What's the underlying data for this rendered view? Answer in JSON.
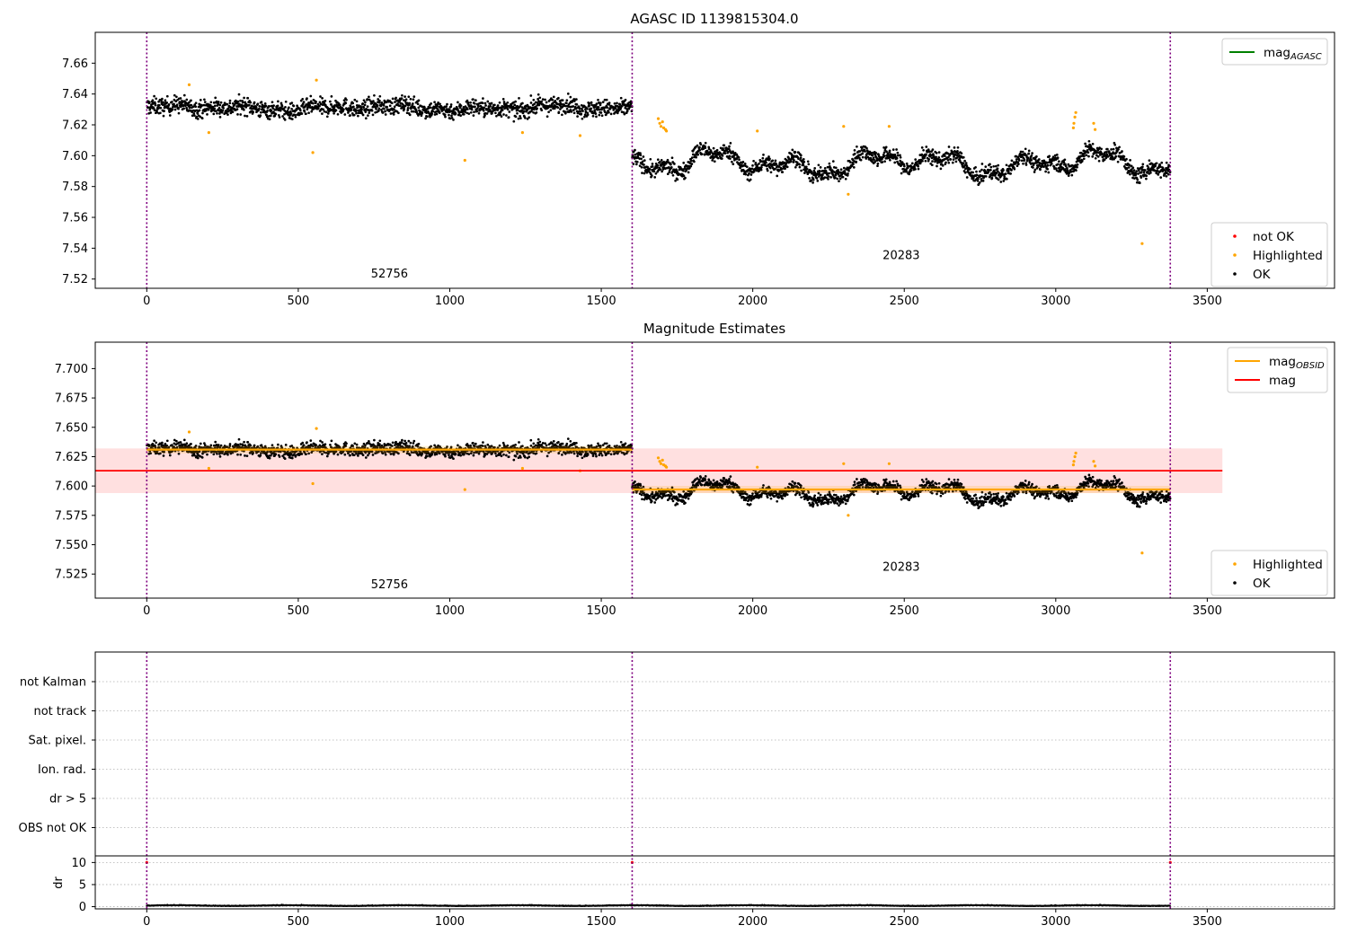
{
  "chart_data": [
    {
      "type": "scatter",
      "title": "AGASC ID 1139815304.0",
      "xlim": [
        -170,
        3920
      ],
      "ylim": [
        7.514,
        7.68
      ],
      "xticks": [
        0,
        500,
        1000,
        1500,
        2000,
        2500,
        3000,
        3500
      ],
      "yticks": [
        7.52,
        7.54,
        7.56,
        7.58,
        7.6,
        7.62,
        7.64,
        7.66
      ],
      "ytick_labels": [
        "7.52",
        "7.54",
        "7.56",
        "7.58",
        "7.60",
        "7.62",
        "7.64",
        "7.66"
      ],
      "vlines": [
        0,
        1602,
        3378
      ],
      "segment_labels": [
        {
          "text": "52756",
          "x": 801,
          "y": 7.521
        },
        {
          "text": "20283",
          "x": 2490,
          "y": 7.533
        }
      ],
      "segments": [
        {
          "x_start": 0,
          "x_end": 1602,
          "mean": 7.631,
          "noise": 0.0055,
          "wave": 0.002
        },
        {
          "x_start": 1602,
          "x_end": 3378,
          "mean": 7.595,
          "noise": 0.005,
          "wave": 0.008
        }
      ],
      "highlighted_points": [
        [
          140,
          7.646
        ],
        [
          205,
          7.615
        ],
        [
          548,
          7.602
        ],
        [
          560,
          7.649
        ],
        [
          1050,
          7.597
        ],
        [
          1240,
          7.615
        ],
        [
          1430,
          7.613
        ],
        [
          1688,
          7.624
        ],
        [
          1693,
          7.621
        ],
        [
          1697,
          7.619
        ],
        [
          1702,
          7.622
        ],
        [
          1706,
          7.618
        ],
        [
          1712,
          7.617
        ],
        [
          1715,
          7.616
        ],
        [
          2015,
          7.616
        ],
        [
          2300,
          7.619
        ],
        [
          2315,
          7.575
        ],
        [
          2450,
          7.619
        ],
        [
          3060,
          7.621
        ],
        [
          3063,
          7.625
        ],
        [
          3066,
          7.628
        ],
        [
          3058,
          7.618
        ],
        [
          3125,
          7.621
        ],
        [
          3130,
          7.617
        ],
        [
          3285,
          7.543
        ]
      ],
      "legends": [
        {
          "position": "upper-right",
          "entries": [
            {
              "label": "mag",
              "subscript": "AGASC",
              "marker": "line",
              "color": "#008000"
            }
          ]
        },
        {
          "position": "lower-right",
          "entries": [
            {
              "label": "not OK",
              "marker": "dot",
              "color": "#ff0000"
            },
            {
              "label": "Highlighted",
              "marker": "dot",
              "color": "#ffa500"
            },
            {
              "label": "OK",
              "marker": "dot",
              "color": "#000000"
            }
          ]
        }
      ]
    },
    {
      "type": "scatter",
      "title": "Magnitude Estimates",
      "xlim": [
        -170,
        3920
      ],
      "ylim": [
        7.5045,
        7.7225
      ],
      "xticks": [
        0,
        500,
        1000,
        1500,
        2000,
        2500,
        3000,
        3500
      ],
      "yticks": [
        7.525,
        7.55,
        7.575,
        7.6,
        7.625,
        7.65,
        7.675,
        7.7
      ],
      "ytick_labels": [
        "7.525",
        "7.550",
        "7.575",
        "7.600",
        "7.625",
        "7.650",
        "7.675",
        "7.700"
      ],
      "vlines": [
        0,
        1602,
        3378
      ],
      "segment_labels": [
        {
          "text": "52756",
          "x": 801,
          "y": 7.513
        },
        {
          "text": "20283",
          "x": 2490,
          "y": 7.528
        }
      ],
      "mag_obsid": [
        {
          "x_start": 0,
          "x_end": 1602,
          "value": 7.631
        },
        {
          "x_start": 1602,
          "x_end": 3378,
          "value": 7.597
        }
      ],
      "mag": {
        "value": 7.613,
        "band": [
          7.594,
          7.632
        ],
        "x_start": -170,
        "x_end": 3550
      },
      "legends": [
        {
          "position": "upper-right",
          "entries": [
            {
              "label": "mag",
              "subscript": "OBSID",
              "marker": "line",
              "color": "#ffa500"
            },
            {
              "label": "mag",
              "subscript": "",
              "marker": "line",
              "color": "#ff0000"
            }
          ]
        },
        {
          "position": "lower-right",
          "entries": [
            {
              "label": "Highlighted",
              "marker": "dot",
              "color": "#ffa500"
            },
            {
              "label": "OK",
              "marker": "dot",
              "color": "#000000"
            }
          ]
        }
      ]
    },
    {
      "type": "scatter",
      "title": "",
      "xlim": [
        -170,
        3920
      ],
      "flag_labels": [
        "not Kalman",
        "not track",
        "Sat. pixel.",
        "Ion. rad.",
        "dr > 5",
        "OBS not OK"
      ],
      "dr": {
        "ylabel": "dr",
        "ylim": [
          -0.5,
          11.5
        ],
        "yticks": [
          0,
          5,
          10
        ],
        "typical": 0.2,
        "spikes": [
          [
            0,
            10
          ],
          [
            1602,
            10
          ],
          [
            3378,
            10
          ]
        ]
      },
      "xticks": [
        0,
        500,
        1000,
        1500,
        2000,
        2500,
        3000,
        3500
      ],
      "vlines": [
        0,
        1602,
        3378
      ]
    }
  ]
}
